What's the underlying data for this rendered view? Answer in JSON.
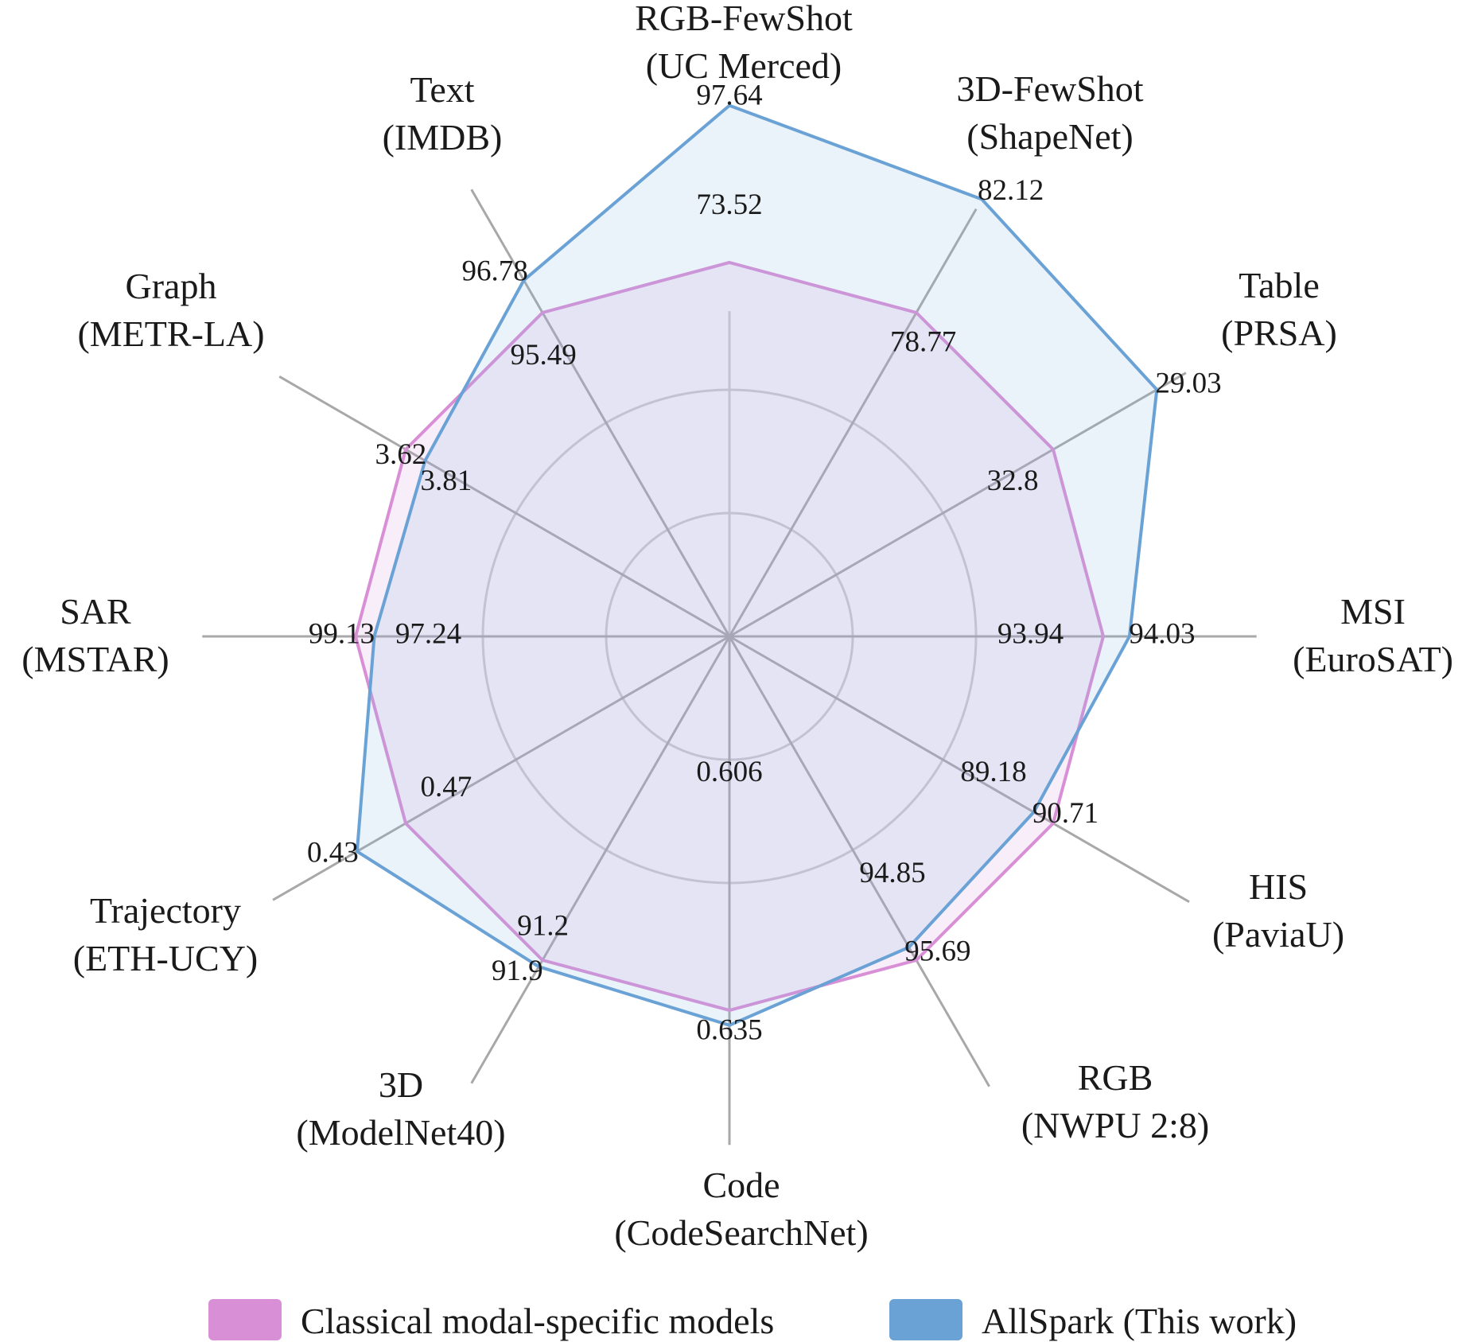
{
  "chart_data": {
    "type": "radar",
    "title": "",
    "axes": [
      {
        "name": "RGB-FewShot",
        "dataset": "(UC Merced)",
        "baseline": "73.52",
        "allspark": "97.64"
      },
      {
        "name": "3D-FewShot",
        "dataset": "(ShapeNet)",
        "baseline": "78.77",
        "allspark": "82.12"
      },
      {
        "name": "Table",
        "dataset": "(PRSA)",
        "baseline": "32.8",
        "allspark": "29.03"
      },
      {
        "name": "MSI",
        "dataset": "(EuroSAT)",
        "baseline": "93.94",
        "allspark": "94.03"
      },
      {
        "name": "HIS",
        "dataset": "(PaviaU)",
        "baseline": "89.18",
        "allspark": "90.71"
      },
      {
        "name": "RGB",
        "dataset": "(NWPU 2:8)",
        "baseline": "94.85",
        "allspark": "95.69"
      },
      {
        "name": "Code",
        "dataset": "(CodeSearchNet)",
        "baseline": "0.606",
        "allspark": "0.635"
      },
      {
        "name": "3D",
        "dataset": "(ModelNet40)",
        "baseline": "91.2",
        "allspark": "91.9"
      },
      {
        "name": "Trajectory",
        "dataset": "(ETH-UCY)",
        "baseline": "0.47",
        "allspark": "0.43"
      },
      {
        "name": "SAR",
        "dataset": "(MSTAR)",
        "baseline": "97.24",
        "allspark": "99.13"
      },
      {
        "name": "Graph",
        "dataset": "(METR-LA)",
        "baseline": "3.81",
        "allspark": "3.62"
      },
      {
        "name": "Text",
        "dataset": "(IMDB)",
        "baseline": "95.49",
        "allspark": "96.78"
      }
    ],
    "normalized": {
      "baseline": [
        1,
        1,
        1,
        1,
        1,
        1,
        1,
        1,
        1,
        1,
        1,
        1
      ],
      "allspark": [
        1.42,
        1.35,
        1.32,
        1.07,
        0.94,
        0.96,
        1.04,
        1.02,
        1.15,
        0.95,
        0.94,
        1.1
      ]
    },
    "series": [
      {
        "name": "Classical modal-specific models",
        "color": "#d98fd6",
        "fill": "rgba(214,150,222,0.16)"
      },
      {
        "name": "AllSpark (This work)",
        "color": "#6aa2d6",
        "fill": "rgba(130,182,222,0.16)"
      }
    ],
    "grid_levels": 3,
    "legend_position": "bottom"
  }
}
